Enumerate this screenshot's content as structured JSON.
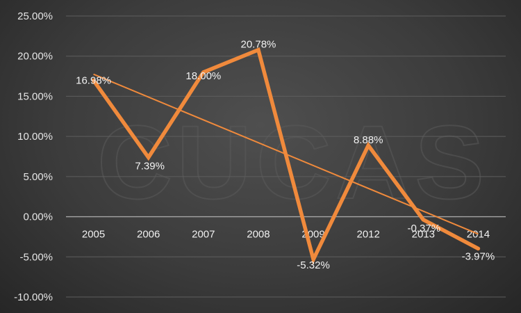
{
  "chart_data": {
    "type": "line",
    "categories": [
      "2005",
      "2006",
      "2007",
      "2008",
      "2009",
      "2012",
      "2013",
      "2014"
    ],
    "series": [
      {
        "values": [
          16.98,
          7.39,
          18.0,
          20.78,
          -5.32,
          8.88,
          -0.37,
          -3.97
        ],
        "data_labels": [
          "16.98%",
          "7.39%",
          "18.00%",
          "20.78%",
          "-5.32%",
          "8.88%",
          "-0.37%",
          "-3.97%"
        ],
        "color": "#f08a3c"
      }
    ],
    "trendline": {
      "type": "linear",
      "color": "#f08a3c"
    },
    "y_ticks": [
      -10,
      -5,
      0,
      5,
      10,
      15,
      20,
      25
    ],
    "y_tick_labels": [
      "-10.00%",
      "-5.00%",
      "0.00%",
      "5.00%",
      "10.00%",
      "15.00%",
      "20.00%",
      "25.00%"
    ],
    "ylim": [
      -10,
      25
    ],
    "grid": true,
    "legend": "none",
    "watermark": "CUCAS",
    "colors": {
      "gridline": "#5e5e5e",
      "axis": "#a6a6a6",
      "text": "#e6e6e6"
    }
  }
}
